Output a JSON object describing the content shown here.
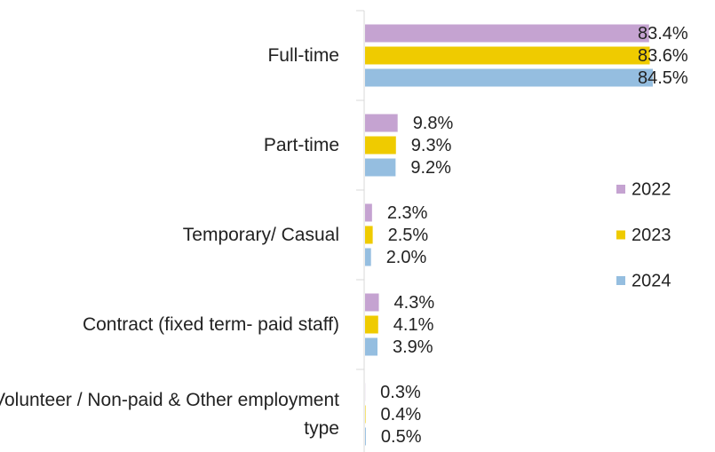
{
  "chart_data": {
    "type": "bar",
    "orientation": "horizontal",
    "categories": [
      "Full-time",
      "Part-time",
      "Temporary/ Casual",
      "Contract (fixed term- paid staff)",
      "Volunteer / Non-paid & Other employment type"
    ],
    "series": [
      {
        "name": "2022",
        "color": "#c5a3d1",
        "values": [
          83.4,
          9.8,
          2.3,
          4.3,
          0.3
        ],
        "value_labels": [
          "83.4%",
          "9.8%",
          "2.3%",
          "4.3%",
          "0.3%"
        ]
      },
      {
        "name": "2023",
        "color": "#efcb00",
        "values": [
          83.6,
          9.3,
          2.5,
          4.1,
          0.4
        ],
        "value_labels": [
          "83.6%",
          "9.3%",
          "2.5%",
          "4.1%",
          "0.4%"
        ]
      },
      {
        "name": "2024",
        "color": "#95bee0",
        "values": [
          84.5,
          9.2,
          2.0,
          3.9,
          0.5
        ],
        "value_labels": [
          "84.5%",
          "9.2%",
          "2.0%",
          "3.9%",
          "0.5%"
        ]
      }
    ],
    "legend": "right"
  }
}
